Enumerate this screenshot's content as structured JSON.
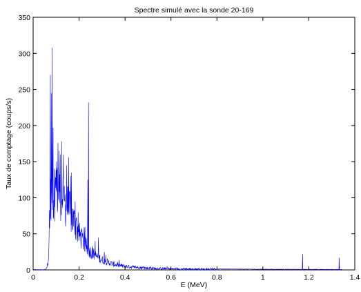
{
  "chart_data": {
    "type": "line",
    "title": "Spectre simulé avec la sonde 20-169",
    "xlabel": "E (MeV)",
    "ylabel": "Taux de comptage (coups/s)",
    "xlim": [
      0,
      1.4
    ],
    "ylim": [
      0,
      350
    ],
    "xticks": [
      0,
      0.2,
      0.4,
      0.6,
      0.8,
      1,
      1.2,
      1.4
    ],
    "xtick_labels": [
      "0",
      "0.2",
      "0.4",
      "0.6",
      "0.8",
      "1",
      "1.2",
      "1.4"
    ],
    "yticks": [
      0,
      50,
      100,
      150,
      200,
      250,
      300,
      350
    ],
    "ytick_labels": [
      "0",
      "50",
      "100",
      "150",
      "200",
      "250",
      "300",
      "350"
    ],
    "grid": false,
    "line_color": "#0000ff",
    "envelope": {
      "x": [
        0.0,
        0.05,
        0.058,
        0.062,
        0.066,
        0.07,
        0.074,
        0.078,
        0.082,
        0.09,
        0.1,
        0.11,
        0.12,
        0.13,
        0.14,
        0.15,
        0.16,
        0.17,
        0.18,
        0.19,
        0.2,
        0.21,
        0.22,
        0.23,
        0.25,
        0.27,
        0.3,
        0.33,
        0.36,
        0.4,
        0.45,
        0.5,
        0.55,
        0.6,
        0.7,
        0.8,
        0.9,
        1.0,
        1.1,
        1.2,
        1.3,
        1.34
      ],
      "y": [
        0,
        0,
        2,
        6,
        15,
        40,
        80,
        105,
        110,
        100,
        108,
        110,
        105,
        98,
        92,
        88,
        80,
        72,
        66,
        58,
        50,
        44,
        38,
        32,
        25,
        20,
        14,
        10,
        7,
        5,
        3.5,
        2.5,
        2,
        1.5,
        1.2,
        1,
        0.8,
        0.6,
        0.5,
        0.4,
        0.3,
        0.3
      ]
    },
    "peaks": [
      {
        "x": 0.075,
        "y": 270
      },
      {
        "x": 0.079,
        "y": 245
      },
      {
        "x": 0.083,
        "y": 308
      },
      {
        "x": 0.087,
        "y": 197
      },
      {
        "x": 0.092,
        "y": 140
      },
      {
        "x": 0.102,
        "y": 150
      },
      {
        "x": 0.108,
        "y": 176
      },
      {
        "x": 0.113,
        "y": 165
      },
      {
        "x": 0.118,
        "y": 160
      },
      {
        "x": 0.124,
        "y": 178
      },
      {
        "x": 0.132,
        "y": 160
      },
      {
        "x": 0.146,
        "y": 145
      },
      {
        "x": 0.163,
        "y": 130
      },
      {
        "x": 0.183,
        "y": 95
      },
      {
        "x": 0.196,
        "y": 80
      },
      {
        "x": 0.238,
        "y": 125
      },
      {
        "x": 0.241,
        "y": 232
      },
      {
        "x": 0.27,
        "y": 40
      },
      {
        "x": 0.284,
        "y": 45
      },
      {
        "x": 0.31,
        "y": 25
      },
      {
        "x": 0.352,
        "y": 12
      },
      {
        "x": 0.511,
        "y": 5
      },
      {
        "x": 0.583,
        "y": 5
      },
      {
        "x": 1.173,
        "y": 22
      },
      {
        "x": 1.332,
        "y": 17
      }
    ]
  }
}
